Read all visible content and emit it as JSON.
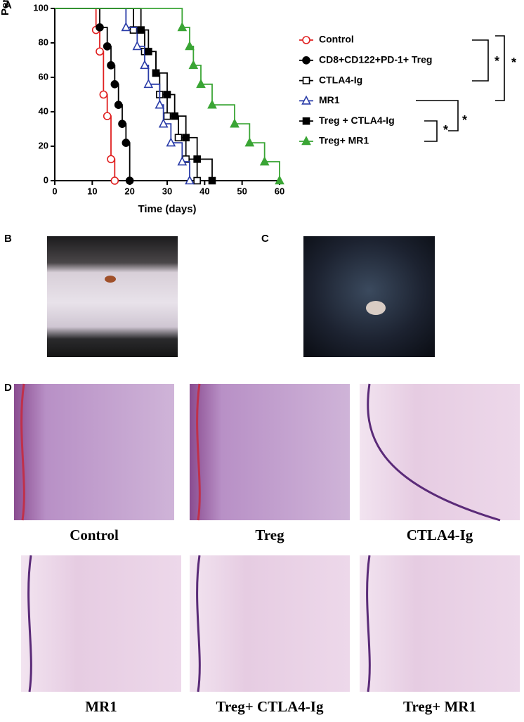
{
  "chart_data": {
    "type": "survival",
    "xlabel": "Time (days)",
    "ylabel": "Percent survival",
    "xlim": [
      0,
      60
    ],
    "ylim": [
      0,
      100
    ],
    "xticks": [
      0,
      10,
      20,
      30,
      40,
      50,
      60
    ],
    "yticks": [
      0,
      20,
      40,
      60,
      80,
      100
    ],
    "series": [
      {
        "name": "Control",
        "color": "#e02020",
        "marker": "circle",
        "filled": false,
        "x": [
          0,
          11,
          12,
          13,
          14,
          15,
          16
        ],
        "values": [
          100,
          87.5,
          75,
          50,
          37.5,
          12.5,
          0
        ]
      },
      {
        "name": "CD8+CD122+PD-1+ Treg",
        "color": "#000000",
        "marker": "circle",
        "filled": true,
        "x": [
          0,
          12,
          14,
          15,
          16,
          17,
          18,
          19,
          20
        ],
        "values": [
          100,
          89,
          78,
          67,
          56,
          44,
          33,
          22,
          0
        ]
      },
      {
        "name": "CTLA4-Ig",
        "color": "#000000",
        "marker": "square",
        "filled": false,
        "x": [
          0,
          21,
          24,
          27,
          28,
          30,
          33,
          35,
          38
        ],
        "values": [
          100,
          87.5,
          75,
          62.5,
          50,
          37.5,
          25,
          12.5,
          0
        ]
      },
      {
        "name": "MR1",
        "color": "#2a3ca8",
        "marker": "triangle",
        "filled": false,
        "x": [
          0,
          19,
          22,
          24,
          25,
          28,
          29,
          31,
          34,
          36
        ],
        "values": [
          100,
          89,
          78,
          67,
          56,
          44,
          33,
          22,
          11,
          0
        ]
      },
      {
        "name": "Treg + CTLA4-Ig",
        "color": "#000000",
        "marker": "square",
        "filled": true,
        "x": [
          0,
          23,
          25,
          27,
          30,
          32,
          35,
          38,
          42
        ],
        "values": [
          100,
          87.5,
          75,
          62.5,
          50,
          37.5,
          25,
          12.5,
          0
        ]
      },
      {
        "name": "Treg+  MR1",
        "color": "#3aa535",
        "marker": "triangle",
        "filled": true,
        "x": [
          0,
          34,
          36,
          37,
          39,
          42,
          48,
          52,
          56,
          60
        ],
        "values": [
          100,
          89,
          78,
          67,
          56,
          44,
          33,
          22,
          11,
          0
        ]
      }
    ],
    "annotations": [
      "*",
      "*",
      "*",
      "*"
    ]
  },
  "panel_labels": [
    "A",
    "B",
    "C",
    "D"
  ],
  "histology": {
    "captions": [
      "Control",
      "Treg",
      "CTLA4-Ig",
      "MR1",
      "Treg+ CTLA4-Ig",
      "Treg+ MR1"
    ]
  }
}
